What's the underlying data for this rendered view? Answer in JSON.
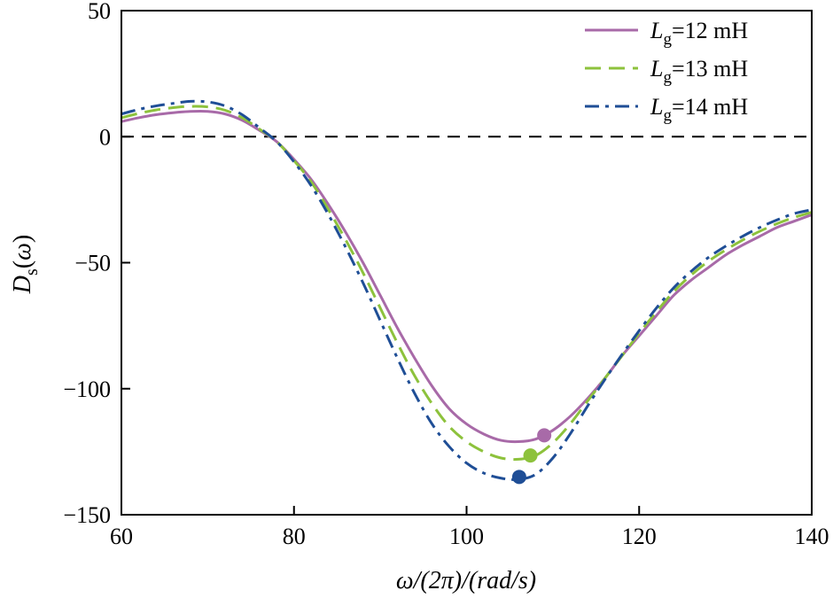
{
  "chart_data": {
    "type": "line",
    "xlabel": "ω/(2π)/(rad/s)",
    "ylabel": "Ds(ω)",
    "xlim": [
      60,
      140
    ],
    "ylim": [
      -150,
      50
    ],
    "xticks": [
      60,
      80,
      100,
      120,
      140
    ],
    "yticks": [
      50,
      0,
      -50,
      -100,
      -150
    ],
    "xtick_labels": [
      "60",
      "80",
      "100",
      "120",
      "140"
    ],
    "ytick_labels": [
      "50",
      "0",
      "−50",
      "−100",
      "−150"
    ],
    "reference_line": {
      "y": 0,
      "style": "dashed",
      "color": "#000000"
    },
    "legend_position": "top-right",
    "grid": false,
    "series": [
      {
        "name": "Lg=12 mH",
        "legend_italic": "L",
        "legend_sub": "g",
        "legend_rest": "=12 mH",
        "color": "#a86aa8",
        "style": "solid",
        "x": [
          60,
          62,
          64,
          66,
          68,
          70,
          72,
          74,
          76,
          78,
          80,
          82,
          84,
          86,
          88,
          90,
          92,
          94,
          96,
          98,
          100,
          102,
          104,
          106,
          108,
          110,
          112,
          114,
          116,
          118,
          120,
          122,
          124,
          126,
          128,
          130,
          132,
          134,
          136,
          138,
          140
        ],
        "y": [
          6,
          7.5,
          8.7,
          9.5,
          10,
          10,
          9,
          6.5,
          2.5,
          -2,
          -9,
          -17,
          -27,
          -38,
          -50,
          -63,
          -76,
          -88,
          -99,
          -108,
          -114,
          -118,
          -120.5,
          -121,
          -120,
          -116.5,
          -111,
          -104,
          -96,
          -87,
          -79,
          -71,
          -63,
          -57,
          -52,
          -47,
          -43,
          -39.5,
          -36,
          -33.5,
          -31
        ]
      },
      {
        "name": "Lg=13 mH",
        "legend_italic": "L",
        "legend_sub": "g",
        "legend_rest": "=13 mH",
        "color": "#8dc23c",
        "style": "dashed",
        "x": [
          60,
          62,
          64,
          66,
          68,
          70,
          72,
          74,
          76,
          78,
          80,
          82,
          84,
          86,
          88,
          90,
          92,
          94,
          96,
          98,
          100,
          102,
          104,
          106,
          108,
          110,
          112,
          114,
          116,
          118,
          120,
          122,
          124,
          126,
          128,
          130,
          132,
          134,
          136,
          138,
          140
        ],
        "y": [
          7.5,
          9.2,
          10.6,
          11.5,
          12,
          11.8,
          10.5,
          7.5,
          3,
          -2,
          -9.5,
          -18,
          -29,
          -41,
          -54,
          -68,
          -82,
          -95,
          -106,
          -115,
          -121,
          -125,
          -127.5,
          -128,
          -126.5,
          -121.5,
          -114,
          -105,
          -96,
          -87,
          -78,
          -69.5,
          -61.5,
          -55,
          -49.5,
          -45,
          -41,
          -37.5,
          -34.5,
          -32,
          -30
        ]
      },
      {
        "name": "Lg=14 mH",
        "legend_italic": "L",
        "legend_sub": "g",
        "legend_rest": "=14 mH",
        "color": "#1f4e96",
        "style": "dashdot",
        "x": [
          60,
          62,
          64,
          66,
          68,
          70,
          72,
          74,
          76,
          78,
          80,
          82,
          84,
          86,
          88,
          90,
          92,
          94,
          96,
          98,
          100,
          102,
          104,
          106,
          108,
          110,
          112,
          114,
          116,
          118,
          120,
          122,
          124,
          126,
          128,
          130,
          132,
          134,
          136,
          138,
          140
        ],
        "y": [
          9,
          10.8,
          12.2,
          13.2,
          14,
          13.8,
          12.2,
          8.7,
          3.5,
          -2,
          -10,
          -19.5,
          -31,
          -44,
          -58,
          -73,
          -88,
          -102,
          -114,
          -123,
          -129.5,
          -133.5,
          -135.5,
          -136,
          -134,
          -127.5,
          -118,
          -107,
          -96.5,
          -86.5,
          -77,
          -68,
          -60,
          -53.5,
          -48,
          -43.5,
          -39.5,
          -36,
          -33,
          -30.5,
          -29
        ]
      }
    ],
    "markers": [
      {
        "series": "Lg=12 mH",
        "x": 109,
        "y": -118.5,
        "color": "#a86aa8"
      },
      {
        "series": "Lg=13 mH",
        "x": 107.4,
        "y": -126.5,
        "color": "#8dc23c"
      },
      {
        "series": "Lg=14 mH",
        "x": 106.1,
        "y": -135,
        "color": "#1f4e96"
      }
    ]
  }
}
